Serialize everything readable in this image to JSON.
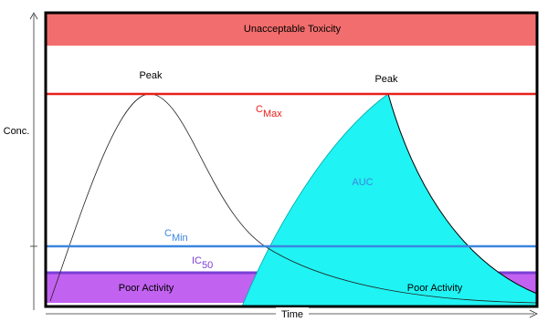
{
  "band_top": "Unacceptable Toxicity",
  "peak_left": "Peak",
  "peak_right": "Peak",
  "cmax": {
    "main": "C",
    "sub": "Max"
  },
  "auc": "AUC",
  "cmin": {
    "main": "C",
    "sub": "Min"
  },
  "ic50": {
    "main": "IC",
    "sub": "50"
  },
  "poor_left": "Poor Activity",
  "poor_right": "Poor Activity",
  "y_axis": "Conc.",
  "x_axis": "Time"
}
